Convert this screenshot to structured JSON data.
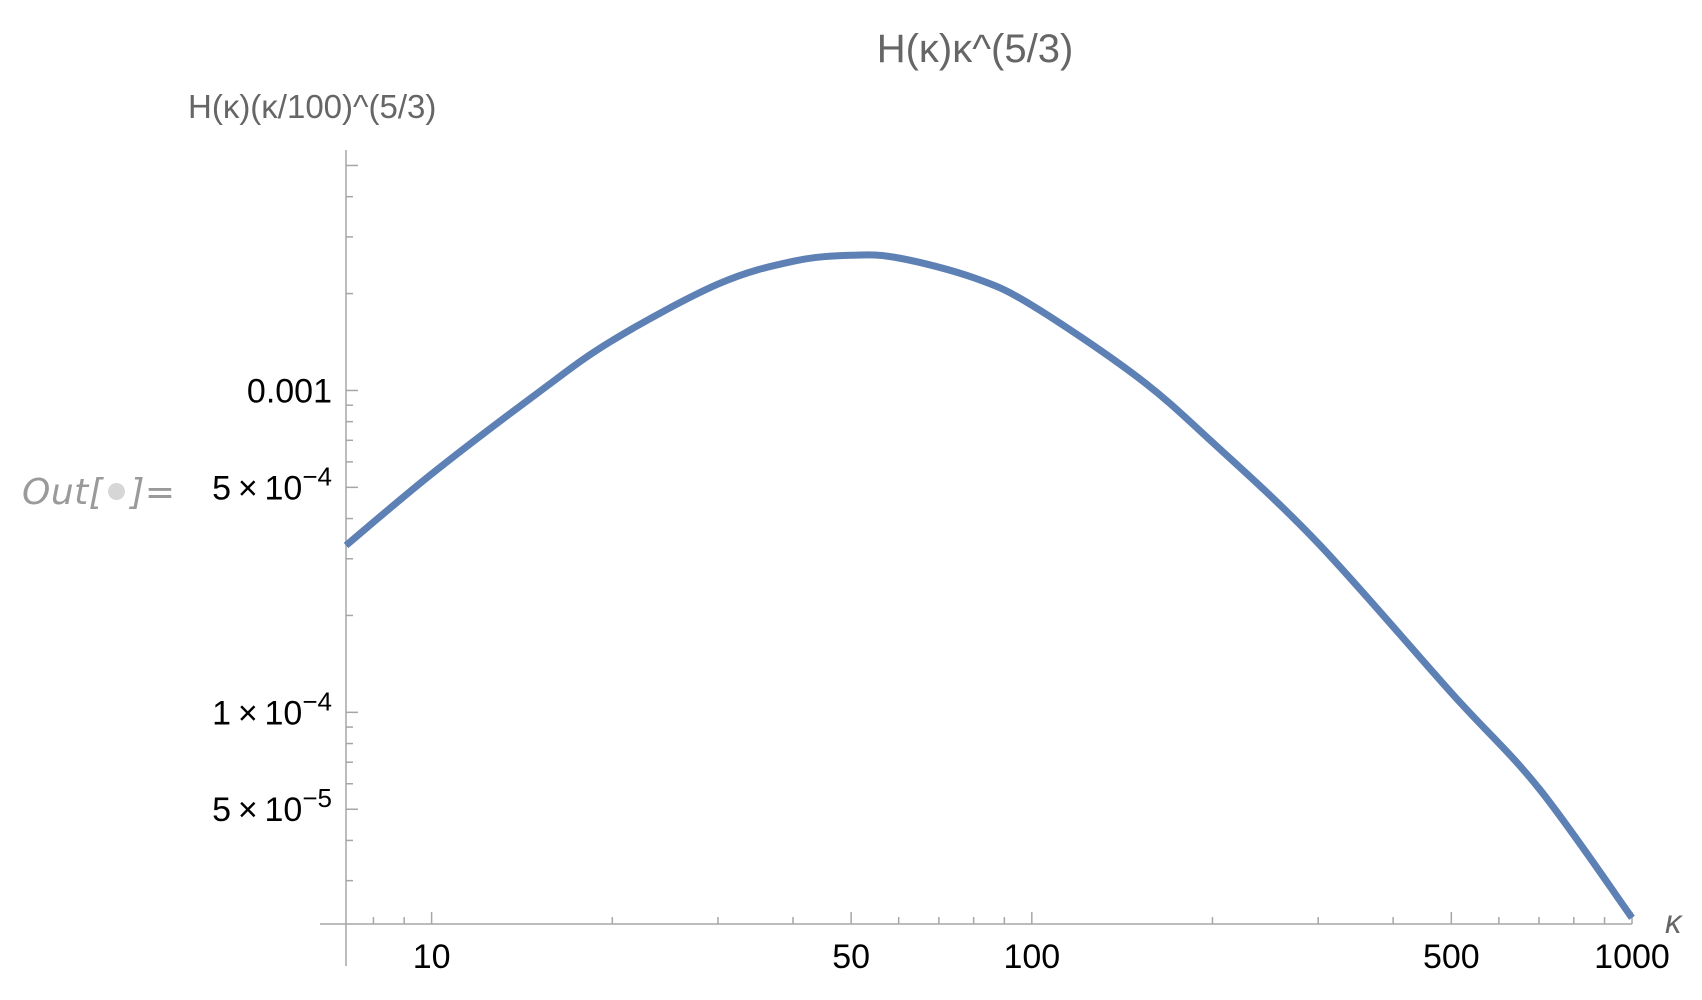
{
  "cell": {
    "out_prefix": "Out[",
    "out_suffix": "]="
  },
  "chart_data": {
    "type": "line",
    "title": "H(κ)κ^(5/3)",
    "ylabel": "H(κ)(κ/100)^(5/3)",
    "xlabel": "κ",
    "xscale": "log",
    "yscale": "log",
    "xlim": [
      7.2,
      1000
    ],
    "ylim": [
      2.2e-05,
      0.0052
    ],
    "grid": false,
    "legend": "none",
    "color": "#5e81b5",
    "x_ticks": [
      {
        "value": 10,
        "label": "10"
      },
      {
        "value": 50,
        "label": "50"
      },
      {
        "value": 100,
        "label": "100"
      },
      {
        "value": 500,
        "label": "500"
      },
      {
        "value": 1000,
        "label": "1000"
      }
    ],
    "y_ticks": [
      {
        "value": 0.001,
        "mantissa": "0.001",
        "exponent": ""
      },
      {
        "value": 0.0005,
        "mantissa": "5 × 10",
        "exponent": "−4"
      },
      {
        "value": 0.0001,
        "mantissa": "1 × 10",
        "exponent": "−4"
      },
      {
        "value": 5e-05,
        "mantissa": "5 × 10",
        "exponent": "−5"
      }
    ],
    "series": [
      {
        "x": [
          7.2,
          10,
          15,
          20,
          30,
          40,
          50,
          60,
          80,
          100,
          150,
          200,
          300,
          500,
          700,
          1000
        ],
        "y": [
          0.00033,
          0.00055,
          0.00098,
          0.00143,
          0.00214,
          0.00252,
          0.00263,
          0.00258,
          0.00224,
          0.00184,
          0.0011,
          0.00069,
          0.000335,
          0.000115,
          5.8e-05,
          2.3e-05
        ]
      }
    ]
  }
}
